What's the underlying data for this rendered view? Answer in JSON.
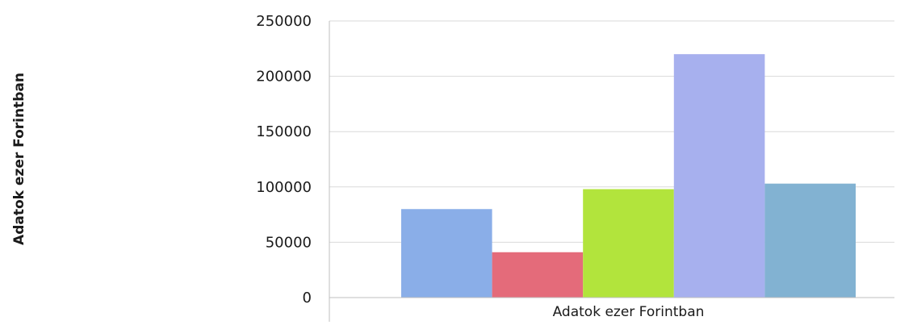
{
  "chart_data": {
    "type": "bar",
    "title": "",
    "ylabel": "Adatok ezer Forintban",
    "xlabel": "",
    "categories": [
      "Adatok ezer Forintban"
    ],
    "ylim": [
      0,
      250000
    ],
    "yticks": [
      0,
      50000,
      100000,
      150000,
      200000,
      250000
    ],
    "grid": true,
    "legend": "none",
    "series": [
      {
        "values": [
          80000
        ],
        "color": "#8aaee8"
      },
      {
        "values": [
          41000
        ],
        "color": "#e46b7a"
      },
      {
        "values": [
          98000
        ],
        "color": "#b2e43c"
      },
      {
        "values": [
          220000
        ],
        "color": "#a7b0ee"
      },
      {
        "values": [
          103000
        ],
        "color": "#82b2d2"
      }
    ]
  }
}
